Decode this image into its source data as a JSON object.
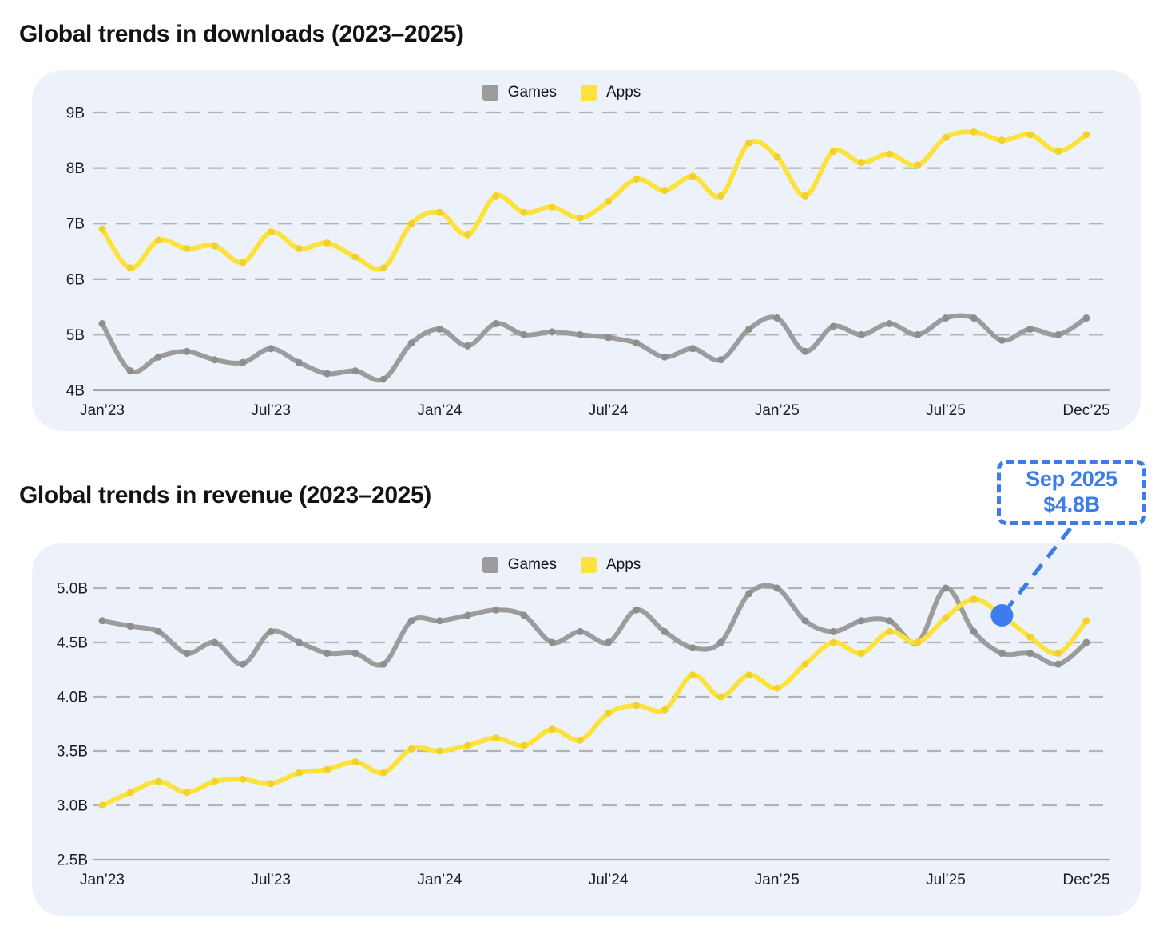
{
  "colors": {
    "panel_background": "#EDF1FA",
    "games_line": "#9C9C9C",
    "games_marker": "#8E8E8E",
    "apps_line": "#FCE23C",
    "apps_marker": "#F0D22B",
    "grid_dashed": "#B3B3B3",
    "axis_baseline": "#A6A6A6",
    "annotation_blue": "#3D7CEC",
    "title_text": "#131313"
  },
  "annotation": {
    "line1": "Sep 2025",
    "line2": "$4.8B",
    "chart": "revenue",
    "series": "Apps",
    "month_index": 32
  },
  "chart_data": [
    {
      "type": "line",
      "id": "downloads",
      "title": "Global trends in downloads (2023–2025)",
      "legend_position": "top-center",
      "grid": "dashed horizontal",
      "x_range_months": [
        "Jan 2023",
        "Dec 2025"
      ],
      "x_tick_labels": [
        "Jan’23",
        "Jul’23",
        "Jan’24",
        "Jul’24",
        "Jan’25",
        "Jul’25",
        "Dec’25"
      ],
      "x_tick_indices": [
        0,
        6,
        12,
        18,
        24,
        30,
        35
      ],
      "y_ticks": [
        "9B",
        "8B",
        "7B",
        "6B",
        "5B",
        "4B"
      ],
      "ylim": [
        4,
        9
      ],
      "unit": "billions of downloads",
      "series": [
        {
          "name": "Games",
          "color": "#9C9C9C",
          "marker_color": "#8E8E8E",
          "values": [
            5.2,
            4.35,
            4.6,
            4.7,
            4.55,
            4.5,
            4.75,
            4.5,
            4.3,
            4.35,
            4.2,
            4.85,
            5.1,
            4.8,
            5.2,
            5.0,
            5.05,
            5.0,
            4.95,
            4.85,
            4.6,
            4.75,
            4.55,
            5.1,
            5.3,
            4.7,
            5.15,
            5.0,
            5.2,
            5.0,
            5.3,
            5.3,
            4.9,
            5.1,
            5.0,
            5.3
          ]
        },
        {
          "name": "Apps",
          "color": "#FCE23C",
          "marker_color": "#F0D22B",
          "values": [
            6.9,
            6.2,
            6.7,
            6.55,
            6.6,
            6.3,
            6.85,
            6.55,
            6.65,
            6.4,
            6.2,
            7.0,
            7.2,
            6.8,
            7.5,
            7.2,
            7.3,
            7.1,
            7.4,
            7.8,
            7.6,
            7.85,
            7.5,
            8.45,
            8.2,
            7.5,
            8.3,
            8.1,
            8.25,
            8.05,
            8.55,
            8.65,
            8.5,
            8.6,
            8.3,
            8.6
          ]
        }
      ]
    },
    {
      "type": "line",
      "id": "revenue",
      "title": "Global trends in revenue (2023–2025)",
      "legend_position": "top-center",
      "grid": "dashed horizontal",
      "x_range_months": [
        "Jan 2023",
        "Dec 2025"
      ],
      "x_tick_labels": [
        "Jan’23",
        "Jul’23",
        "Jan’24",
        "Jul’24",
        "Jan’25",
        "Jul’25",
        "Dec’25"
      ],
      "x_tick_indices": [
        0,
        6,
        12,
        18,
        24,
        30,
        35
      ],
      "y_ticks": [
        "5.0B",
        "4.5B",
        "4.0B",
        "3.5B",
        "3.0B",
        "2.5B"
      ],
      "ylim": [
        2.5,
        5.0
      ],
      "unit": "billions of USD",
      "has_annotation": true,
      "series": [
        {
          "name": "Games",
          "color": "#9C9C9C",
          "marker_color": "#8E8E8E",
          "values": [
            4.7,
            4.65,
            4.6,
            4.4,
            4.5,
            4.3,
            4.6,
            4.5,
            4.4,
            4.4,
            4.3,
            4.7,
            4.7,
            4.75,
            4.8,
            4.75,
            4.5,
            4.6,
            4.5,
            4.8,
            4.6,
            4.45,
            4.5,
            4.95,
            5.0,
            4.7,
            4.6,
            4.7,
            4.7,
            4.5,
            5.0,
            4.6,
            4.4,
            4.4,
            4.3,
            4.5
          ]
        },
        {
          "name": "Apps",
          "color": "#FCE23C",
          "marker_color": "#F0D22B",
          "values": [
            3.0,
            3.12,
            3.22,
            3.12,
            3.22,
            3.24,
            3.2,
            3.3,
            3.33,
            3.4,
            3.3,
            3.52,
            3.5,
            3.55,
            3.62,
            3.55,
            3.7,
            3.6,
            3.85,
            3.92,
            3.88,
            4.2,
            4.0,
            4.2,
            4.08,
            4.3,
            4.5,
            4.4,
            4.6,
            4.5,
            4.73,
            4.9,
            4.75,
            4.55,
            4.4,
            4.7
          ]
        }
      ]
    }
  ]
}
